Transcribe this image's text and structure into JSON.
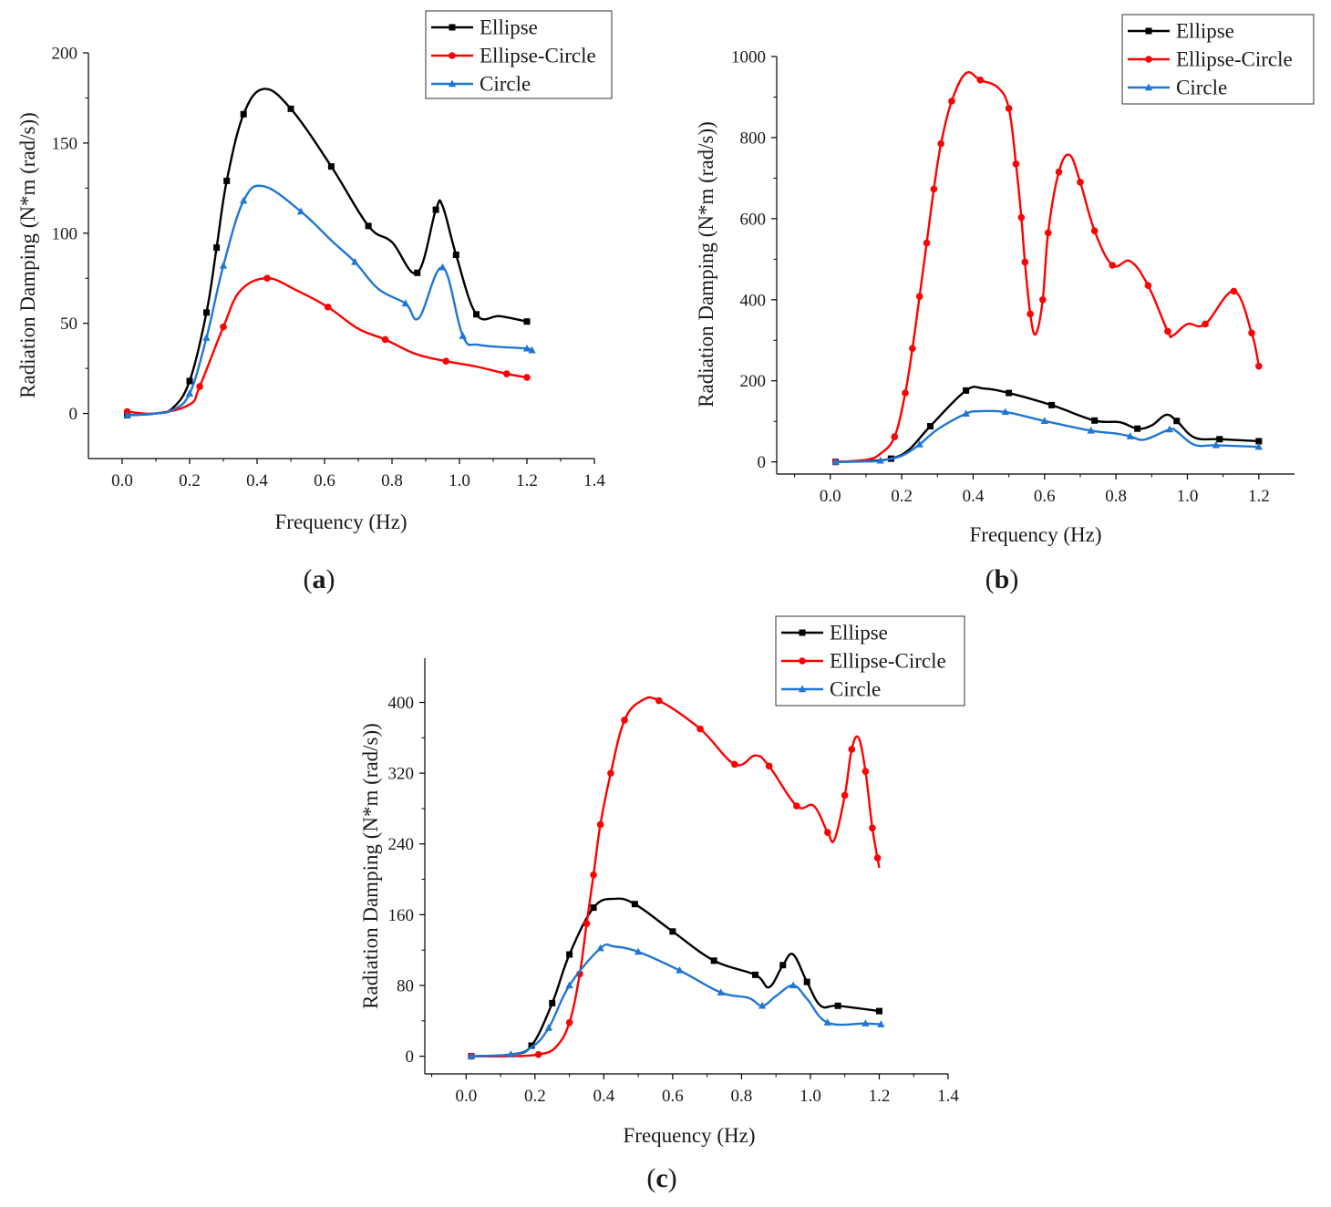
{
  "panels": [
    {
      "label_open": "(",
      "label_letter": "a",
      "label_close": ")"
    },
    {
      "label_open": "(",
      "label_letter": "b",
      "label_close": ")"
    },
    {
      "label_open": "(",
      "label_letter": "c",
      "label_close": ")"
    }
  ],
  "chart_data": [
    {
      "type": "line",
      "title": "",
      "xlabel": "Frequency (Hz)",
      "ylabel": "Radiation Damping (N*m (rad/s))",
      "xlim": [
        -0.1,
        1.4
      ],
      "ylim": [
        -25,
        200
      ],
      "xticks": [
        0.0,
        0.2,
        0.4,
        0.6,
        0.8,
        1.0,
        1.2,
        1.4
      ],
      "xtick_labels": [
        "0.0",
        "0.2",
        "0.4",
        "0.6",
        "0.8",
        "1.0",
        "1.2",
        "1.4"
      ],
      "yticks": [
        0,
        50,
        100,
        150,
        200
      ],
      "ytick_labels": [
        "0",
        "50",
        "100",
        "150",
        "200"
      ],
      "legend_position": "top-right",
      "grid": false,
      "series": [
        {
          "name": "Ellipse",
          "color": "#000000",
          "marker": "square",
          "x": [
            0.015,
            0.1,
            0.15,
            0.2,
            0.25,
            0.28,
            0.31,
            0.36,
            0.42,
            0.5,
            0.62,
            0.73,
            0.8,
            0.875,
            0.93,
            0.95,
            0.99,
            1.05,
            1.12,
            1.2
          ],
          "y": [
            -1,
            0,
            3,
            18,
            56,
            92,
            129,
            166,
            180,
            169,
            137,
            104,
            95,
            78,
            113,
            115,
            88,
            55,
            54,
            51
          ],
          "markers_x": [
            0.015,
            0.2,
            0.25,
            0.28,
            0.31,
            0.36,
            0.5,
            0.62,
            0.73,
            0.875,
            0.93,
            0.99,
            1.05,
            1.2
          ]
        },
        {
          "name": "Ellipse-Circle",
          "color": "#ff0000",
          "marker": "circle",
          "x": [
            0.015,
            0.1,
            0.2,
            0.23,
            0.3,
            0.35,
            0.43,
            0.52,
            0.61,
            0.7,
            0.78,
            0.87,
            0.96,
            1.05,
            1.14,
            1.2
          ],
          "y": [
            1,
            0,
            5,
            15,
            48,
            68,
            75,
            68,
            59,
            47,
            41,
            33,
            29,
            26,
            22,
            20
          ],
          "markers_x": [
            0.015,
            0.23,
            0.3,
            0.43,
            0.61,
            0.78,
            0.96,
            1.14,
            1.2
          ]
        },
        {
          "name": "Circle",
          "color": "#1f77d4",
          "marker": "triangle",
          "x": [
            0.015,
            0.1,
            0.15,
            0.2,
            0.25,
            0.3,
            0.36,
            0.42,
            0.53,
            0.62,
            0.69,
            0.76,
            0.84,
            0.88,
            0.95,
            1.01,
            1.06,
            1.2,
            1.215
          ],
          "y": [
            -1,
            0,
            2,
            11,
            42,
            82,
            118,
            126,
            112,
            96,
            84,
            69,
            61,
            53,
            81,
            43,
            38,
            36,
            35
          ],
          "markers_x": [
            0.015,
            0.2,
            0.25,
            0.3,
            0.36,
            0.53,
            0.69,
            0.84,
            0.95,
            1.01,
            1.2,
            1.215
          ]
        }
      ]
    },
    {
      "type": "line",
      "title": "",
      "xlabel": "Frequency (Hz)",
      "ylabel": "Radiation Damping (N*m (rad/s))",
      "xlim": [
        -0.15,
        1.3
      ],
      "ylim": [
        -30,
        1000
      ],
      "xticks": [
        0.0,
        0.2,
        0.4,
        0.6,
        0.8,
        1.0,
        1.2
      ],
      "xtick_labels": [
        "0.0",
        "0.2",
        "0.4",
        "0.6",
        "0.8",
        "1.0",
        "1.2"
      ],
      "yticks": [
        0,
        200,
        400,
        600,
        800,
        1000
      ],
      "ytick_labels": [
        "0",
        "200",
        "400",
        "600",
        "800",
        "1000"
      ],
      "legend_position": "top-right",
      "grid": false,
      "series": [
        {
          "name": "Ellipse",
          "color": "#000000",
          "marker": "square",
          "x": [
            0.015,
            0.1,
            0.17,
            0.22,
            0.28,
            0.38,
            0.43,
            0.5,
            0.62,
            0.74,
            0.81,
            0.86,
            0.9,
            0.94,
            0.97,
            1.02,
            1.09,
            1.2
          ],
          "y": [
            0,
            2,
            8,
            30,
            88,
            176,
            181,
            170,
            140,
            102,
            98,
            82,
            90,
            116,
            101,
            60,
            56,
            51
          ],
          "markers_x": [
            0.015,
            0.17,
            0.28,
            0.38,
            0.5,
            0.62,
            0.74,
            0.86,
            0.97,
            1.09,
            1.2
          ]
        },
        {
          "name": "Ellipse-Circle",
          "color": "#ff0000",
          "marker": "circle",
          "x": [
            0.015,
            0.1,
            0.14,
            0.18,
            0.21,
            0.23,
            0.25,
            0.27,
            0.29,
            0.31,
            0.34,
            0.38,
            0.42,
            0.47,
            0.5,
            0.52,
            0.535,
            0.545,
            0.56,
            0.575,
            0.595,
            0.61,
            0.64,
            0.67,
            0.7,
            0.74,
            0.79,
            0.84,
            0.89,
            0.945,
            0.96,
            1.0,
            1.05,
            1.13,
            1.18,
            1.2
          ],
          "y": [
            0,
            5,
            20,
            62,
            170,
            280,
            408,
            540,
            673,
            785,
            890,
            959,
            942,
            923,
            872,
            735,
            603,
            493,
            365,
            315,
            400,
            565,
            715,
            757,
            690,
            570,
            485,
            495,
            435,
            322,
            312,
            340,
            340,
            421,
            318,
            236
          ],
          "markers_x": [
            0.015,
            0.18,
            0.21,
            0.23,
            0.25,
            0.27,
            0.29,
            0.31,
            0.34,
            0.42,
            0.5,
            0.52,
            0.535,
            0.545,
            0.56,
            0.595,
            0.61,
            0.64,
            0.7,
            0.74,
            0.79,
            0.89,
            0.945,
            1.05,
            1.13,
            1.18,
            1.2
          ]
        },
        {
          "name": "Circle",
          "color": "#1f77d4",
          "marker": "triangle",
          "x": [
            0.015,
            0.1,
            0.14,
            0.2,
            0.25,
            0.3,
            0.38,
            0.42,
            0.49,
            0.6,
            0.73,
            0.8,
            0.84,
            0.88,
            0.95,
            0.97,
            1.02,
            1.08,
            1.2
          ],
          "y": [
            0,
            1,
            3,
            15,
            43,
            80,
            119,
            125,
            123,
            101,
            77,
            70,
            63,
            55,
            80,
            75,
            42,
            41,
            37
          ],
          "markers_x": [
            0.015,
            0.14,
            0.25,
            0.38,
            0.49,
            0.6,
            0.73,
            0.84,
            0.95,
            1.08,
            1.2
          ]
        }
      ]
    },
    {
      "type": "line",
      "title": "",
      "xlabel": "Frequency (Hz)",
      "ylabel": "Radiation Damping (N*m (rad/s))",
      "xlim": [
        -0.12,
        1.4
      ],
      "ylim": [
        -20,
        450
      ],
      "xticks": [
        0.0,
        0.2,
        0.4,
        0.6,
        0.8,
        1.0,
        1.2,
        1.4
      ],
      "xtick_labels": [
        "0.0",
        "0.2",
        "0.4",
        "0.6",
        "0.8",
        "1.0",
        "1.2",
        "1.4"
      ],
      "yticks": [
        0,
        80,
        160,
        240,
        320,
        400
      ],
      "ytick_labels": [
        "0",
        "80",
        "160",
        "240",
        "320",
        "400"
      ],
      "legend_position": "top-right",
      "grid": false,
      "series": [
        {
          "name": "Ellipse",
          "color": "#000000",
          "marker": "square",
          "x": [
            0.015,
            0.13,
            0.19,
            0.25,
            0.3,
            0.37,
            0.43,
            0.49,
            0.6,
            0.72,
            0.84,
            0.88,
            0.92,
            0.95,
            0.99,
            1.03,
            1.08,
            1.2
          ],
          "y": [
            0,
            2,
            12,
            60,
            115,
            168,
            178,
            172,
            141,
            108,
            92,
            78,
            103,
            115,
            84,
            57,
            57,
            51
          ],
          "markers_x": [
            0.015,
            0.19,
            0.25,
            0.3,
            0.37,
            0.49,
            0.6,
            0.72,
            0.84,
            0.92,
            0.99,
            1.08,
            1.2
          ]
        },
        {
          "name": "Ellipse-Circle",
          "color": "#ff0000",
          "marker": "circle",
          "x": [
            0.015,
            0.13,
            0.21,
            0.26,
            0.3,
            0.33,
            0.35,
            0.37,
            0.39,
            0.42,
            0.46,
            0.51,
            0.56,
            0.68,
            0.78,
            0.84,
            0.88,
            0.96,
            1.01,
            1.05,
            1.07,
            1.1,
            1.12,
            1.14,
            1.16,
            1.18,
            1.2
          ],
          "y": [
            0,
            0,
            2,
            10,
            38,
            93,
            150,
            205,
            262,
            320,
            380,
            402,
            402,
            370,
            330,
            340,
            328,
            283,
            283,
            253,
            245,
            295,
            347,
            360,
            322,
            258,
            213
          ],
          "markers_x": [
            0.015,
            0.21,
            0.3,
            0.33,
            0.35,
            0.37,
            0.39,
            0.42,
            0.46,
            0.56,
            0.68,
            0.78,
            0.88,
            0.96,
            1.05,
            1.1,
            1.12,
            1.16,
            1.18,
            1.195
          ]
        },
        {
          "name": "Circle",
          "color": "#1f77d4",
          "marker": "triangle",
          "x": [
            0.015,
            0.13,
            0.19,
            0.24,
            0.3,
            0.39,
            0.43,
            0.5,
            0.62,
            0.74,
            0.82,
            0.86,
            0.9,
            0.95,
            0.99,
            1.05,
            1.16,
            1.205
          ],
          "y": [
            0,
            2,
            10,
            32,
            80,
            122,
            124,
            118,
            97,
            72,
            66,
            57,
            68,
            80,
            65,
            38,
            37,
            36
          ],
          "markers_x": [
            0.015,
            0.13,
            0.24,
            0.3,
            0.39,
            0.5,
            0.62,
            0.74,
            0.86,
            0.95,
            1.05,
            1.16,
            1.205
          ]
        }
      ]
    }
  ]
}
